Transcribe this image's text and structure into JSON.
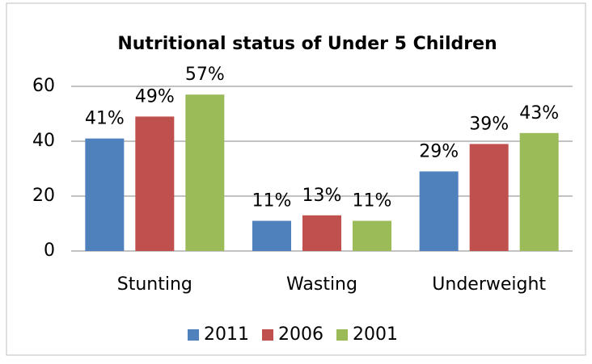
{
  "chart_data": {
    "type": "bar",
    "title": "Nutritional status of Under 5 Children",
    "categories": [
      "Stunting",
      "Wasting",
      "Underweight"
    ],
    "series": [
      {
        "name": "2011",
        "color": "#4f81bd",
        "values": [
          41,
          11,
          29
        ],
        "value_labels": [
          "41%",
          "11%",
          "29%"
        ]
      },
      {
        "name": "2006",
        "color": "#c0504d",
        "values": [
          49,
          13,
          39
        ],
        "value_labels": [
          "49%",
          "13%",
          "39%"
        ]
      },
      {
        "name": "2001",
        "color": "#9bbb59",
        "values": [
          57,
          11,
          43
        ],
        "value_labels": [
          "57%",
          "11%",
          "43%"
        ]
      }
    ],
    "ylim": [
      0,
      60
    ],
    "yticks": [
      0,
      20,
      40,
      60
    ],
    "grid": true,
    "legend": "bottom"
  }
}
